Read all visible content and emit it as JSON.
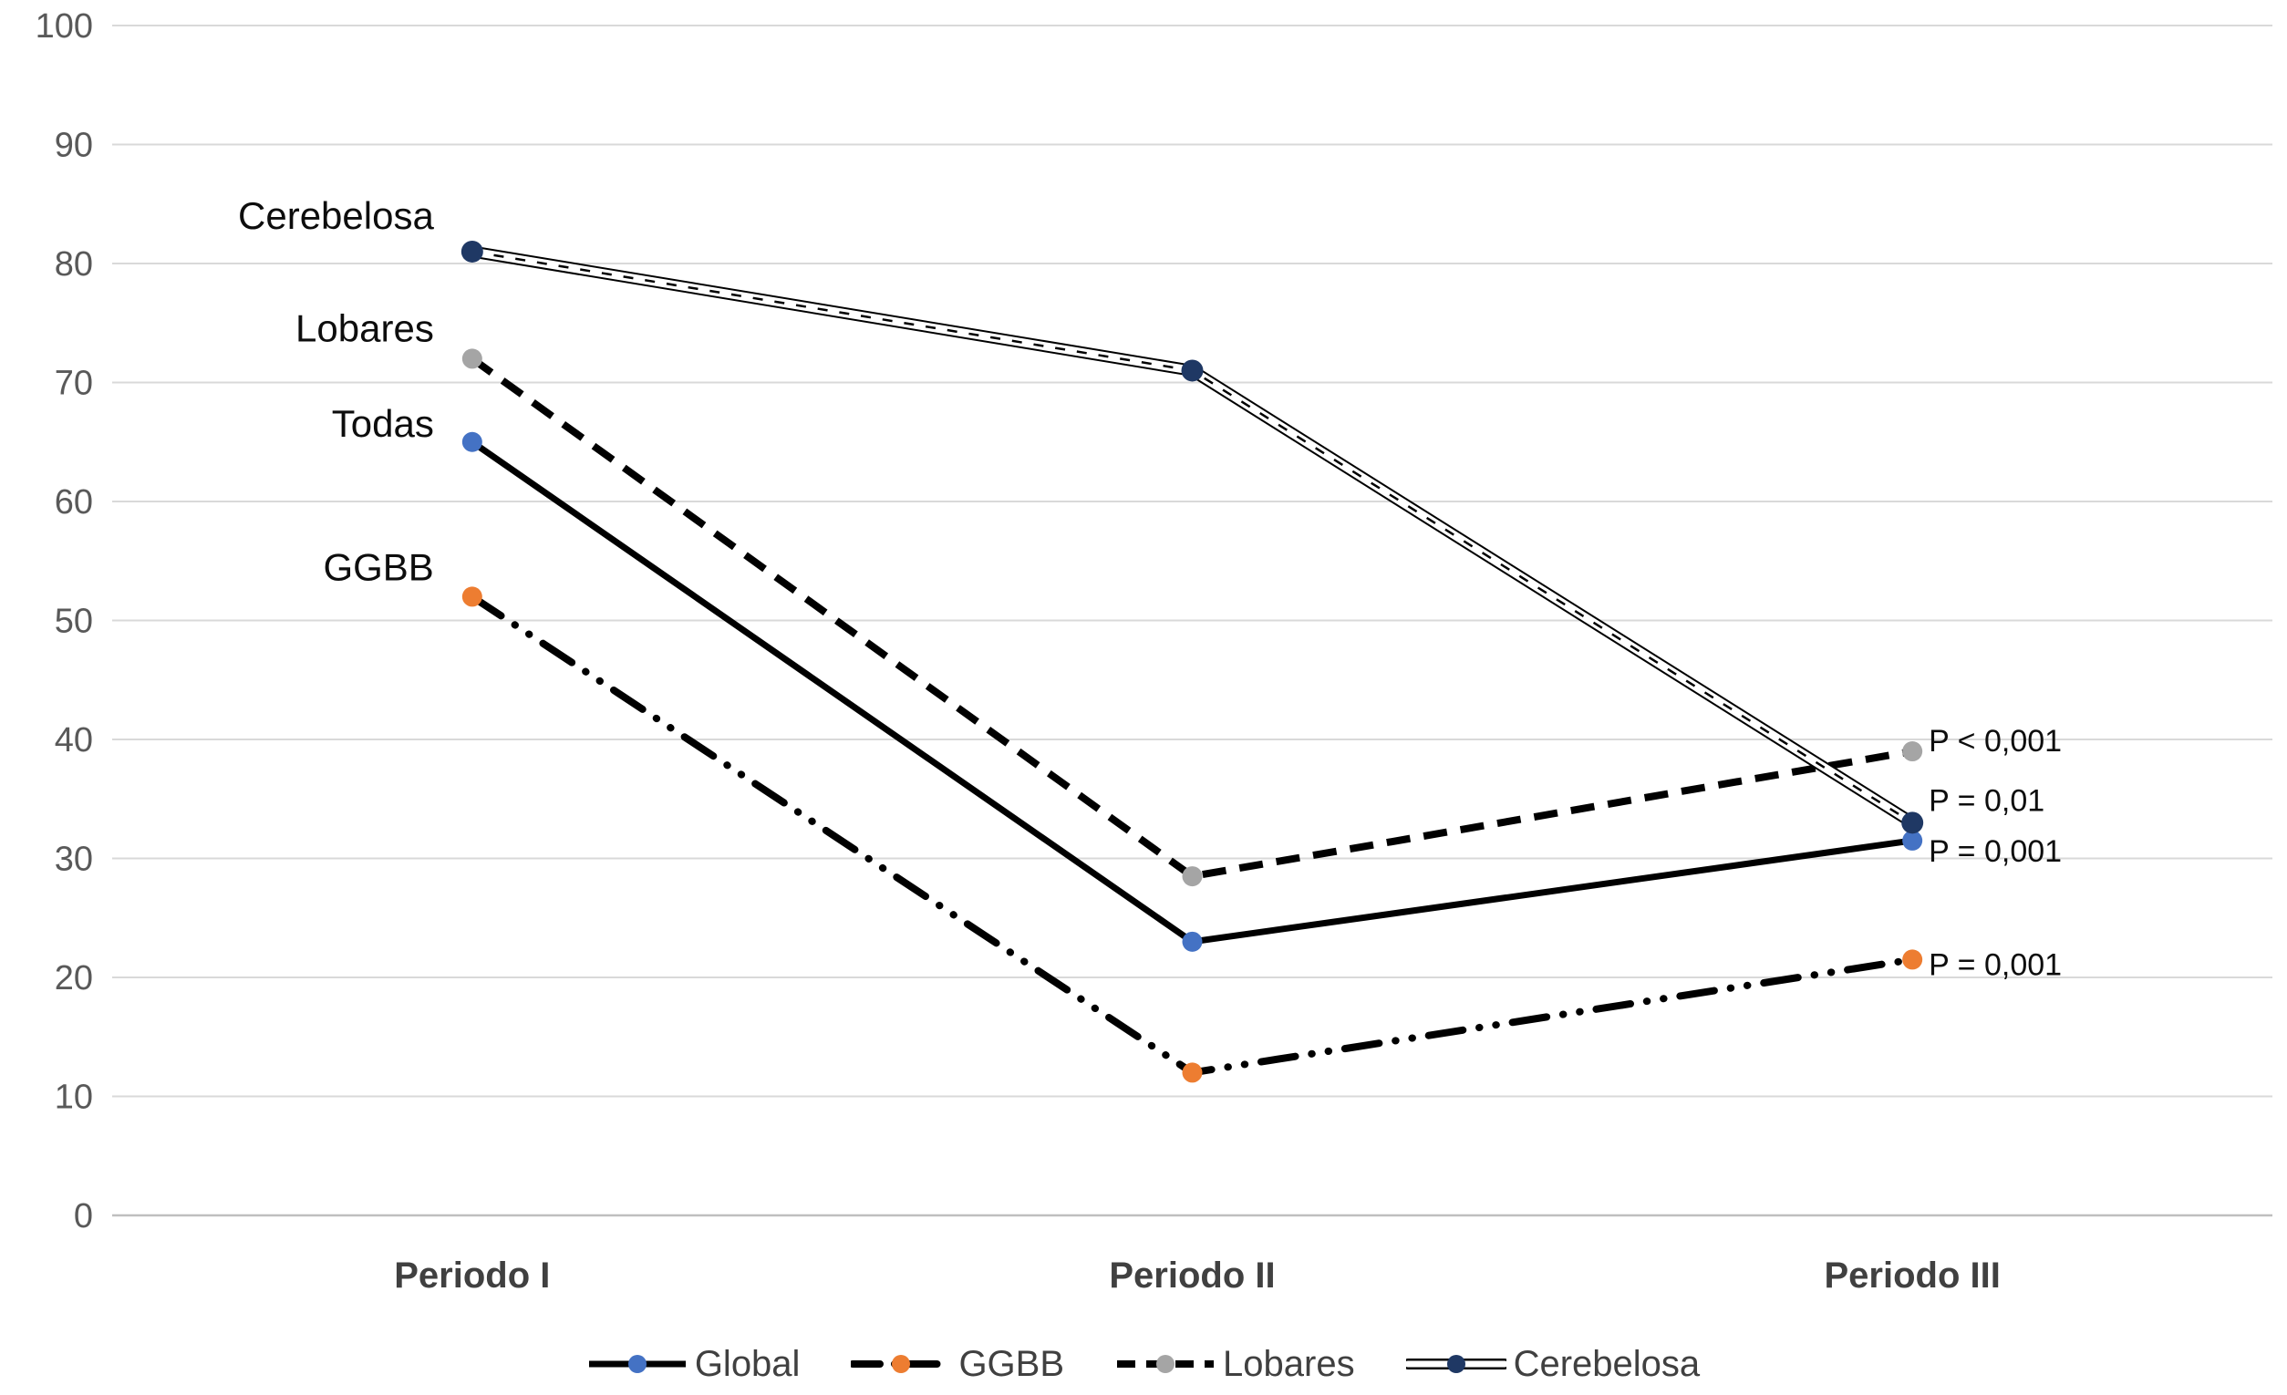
{
  "chart_data": {
    "type": "line",
    "title": "",
    "categories": [
      "Periodo I",
      "Periodo II",
      "Periodo III"
    ],
    "series": [
      {
        "name": "Global",
        "values": [
          65,
          23,
          31.5
        ],
        "marker_color": "#4472C4",
        "line_style": "solid",
        "start_label": "Todas",
        "end_label": "P = 0,001"
      },
      {
        "name": "GGBB",
        "values": [
          52,
          12,
          21.5
        ],
        "marker_color": "#ED7D31",
        "line_style": "dash-dot-dot",
        "start_label": "GGBB",
        "end_label": "P = 0,001"
      },
      {
        "name": "Lobares",
        "values": [
          72,
          28.5,
          39
        ],
        "marker_color": "#A5A5A5",
        "line_style": "dashed",
        "start_label": "Lobares",
        "end_label": "P < 0,001"
      },
      {
        "name": "Cerebelosa",
        "values": [
          81,
          71,
          33
        ],
        "marker_color": "#1F3864",
        "line_style": "double",
        "start_label": "Cerebelosa",
        "end_label": "P = 0,01"
      }
    ],
    "legend": [
      "Global",
      "GGBB",
      "Lobares",
      "Cerebelosa"
    ],
    "legend_position": "bottom",
    "line_color": "#000000",
    "ylim": [
      0,
      100
    ],
    "ytick_step": 10,
    "yticks": [
      0,
      10,
      20,
      30,
      40,
      50,
      60,
      70,
      80,
      90,
      100
    ],
    "xlabel": "",
    "ylabel": "",
    "grid": true,
    "gridline_color": "#D9D9D9",
    "axis_line_color": "#BFBFBF",
    "tick_label_color": "#595959",
    "category_label_color": "#404040",
    "annotation_color": "#0d0d0d",
    "legend_text_color": "#404040"
  }
}
